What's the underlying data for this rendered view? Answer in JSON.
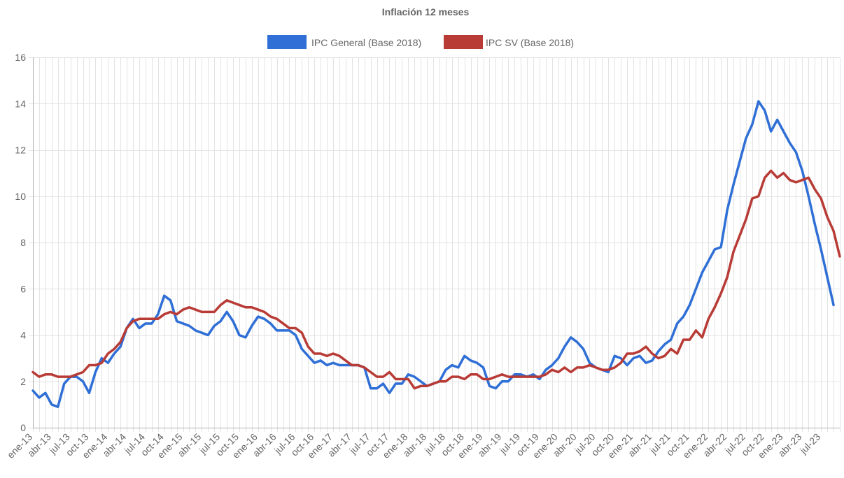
{
  "chart_data": {
    "type": "line",
    "title": "Inflación 12 meses",
    "xlabel": "",
    "ylabel": "",
    "ylim": [
      0,
      16
    ],
    "yticks": [
      0,
      2,
      4,
      6,
      8,
      10,
      12,
      14,
      16
    ],
    "grid": true,
    "legend_position": "top",
    "x_start": "ene-13",
    "x_tick_labels": [
      "ene-13",
      "abr-13",
      "jul-13",
      "oct-13",
      "ene-14",
      "abr-14",
      "jul-14",
      "oct-14",
      "ene-15",
      "abr-15",
      "jul-15",
      "oct-15",
      "ene-16",
      "abr-16",
      "jul-16",
      "oct-16",
      "ene-17",
      "abr-17",
      "jul-17",
      "oct-17",
      "ene-18",
      "abr-18",
      "jul-18",
      "oct-18",
      "ene-19",
      "abr-19",
      "jul-19",
      "oct-19",
      "ene-20",
      "abr-20",
      "jul-20",
      "oct-20",
      "ene-21",
      "abr-21",
      "jul-21",
      "oct-21",
      "ene-22",
      "abr-22",
      "jul-22",
      "oct-22",
      "ene-23",
      "abr-23",
      "jul-23"
    ],
    "series": [
      {
        "name": "IPC General (Base 2018)",
        "color": "#2f6fd6",
        "values": [
          1.6,
          1.3,
          1.5,
          1.0,
          0.9,
          1.9,
          2.2,
          2.2,
          2.0,
          1.5,
          2.4,
          3.0,
          2.8,
          3.2,
          3.5,
          4.3,
          4.7,
          4.3,
          4.5,
          4.5,
          4.9,
          5.7,
          5.5,
          4.6,
          4.5,
          4.4,
          4.2,
          4.1,
          4.0,
          4.4,
          4.6,
          5.0,
          4.6,
          4.0,
          3.9,
          4.4,
          4.8,
          4.7,
          4.5,
          4.2,
          4.2,
          4.2,
          4.0,
          3.4,
          3.1,
          2.8,
          2.9,
          2.7,
          2.8,
          2.7,
          2.7,
          2.7,
          2.7,
          2.6,
          1.7,
          1.7,
          1.9,
          1.5,
          1.9,
          1.9,
          2.3,
          2.2,
          2.0,
          1.8,
          1.9,
          2.0,
          2.5,
          2.7,
          2.6,
          3.1,
          2.9,
          2.8,
          2.6,
          1.8,
          1.7,
          2.0,
          2.0,
          2.3,
          2.3,
          2.2,
          2.3,
          2.1,
          2.5,
          2.7,
          3.0,
          3.5,
          3.9,
          3.7,
          3.4,
          2.8,
          2.6,
          2.5,
          2.4,
          3.1,
          3.0,
          2.7,
          3.0,
          3.1,
          2.8,
          2.9,
          3.3,
          3.6,
          3.8,
          4.5,
          4.8,
          5.3,
          6.0,
          6.7,
          7.2,
          7.7,
          7.8,
          9.4,
          10.5,
          11.5,
          12.5,
          13.1,
          14.1,
          13.7,
          12.8,
          13.3,
          12.8,
          12.3,
          11.9,
          11.1,
          10.0,
          8.8,
          7.7,
          6.5,
          5.3
        ]
      },
      {
        "name": "IPC SV (Base 2018)",
        "color": "#b83b36",
        "values": [
          2.4,
          2.2,
          2.3,
          2.3,
          2.2,
          2.2,
          2.2,
          2.3,
          2.4,
          2.7,
          2.7,
          2.8,
          3.2,
          3.4,
          3.7,
          4.3,
          4.6,
          4.7,
          4.7,
          4.7,
          4.7,
          4.9,
          5.0,
          4.9,
          5.1,
          5.2,
          5.1,
          5.0,
          5.0,
          5.0,
          5.3,
          5.5,
          5.4,
          5.3,
          5.2,
          5.2,
          5.1,
          5.0,
          4.8,
          4.7,
          4.5,
          4.3,
          4.3,
          4.1,
          3.5,
          3.2,
          3.2,
          3.1,
          3.2,
          3.1,
          2.9,
          2.7,
          2.7,
          2.6,
          2.4,
          2.2,
          2.2,
          2.4,
          2.1,
          2.1,
          2.1,
          1.7,
          1.8,
          1.8,
          1.9,
          2.0,
          2.0,
          2.2,
          2.2,
          2.1,
          2.3,
          2.3,
          2.1,
          2.1,
          2.2,
          2.3,
          2.2,
          2.2,
          2.2,
          2.2,
          2.2,
          2.2,
          2.3,
          2.5,
          2.4,
          2.6,
          2.4,
          2.6,
          2.6,
          2.7,
          2.6,
          2.5,
          2.5,
          2.6,
          2.8,
          3.2,
          3.2,
          3.3,
          3.5,
          3.2,
          3.0,
          3.1,
          3.4,
          3.2,
          3.8,
          3.8,
          4.2,
          3.9,
          4.7,
          5.2,
          5.8,
          6.5,
          7.6,
          8.3,
          9.0,
          9.9,
          10.0,
          10.8,
          11.1,
          10.8,
          11.0,
          10.7,
          10.6,
          10.7,
          10.8,
          10.3,
          9.9,
          9.1,
          8.5,
          7.4
        ]
      }
    ]
  }
}
